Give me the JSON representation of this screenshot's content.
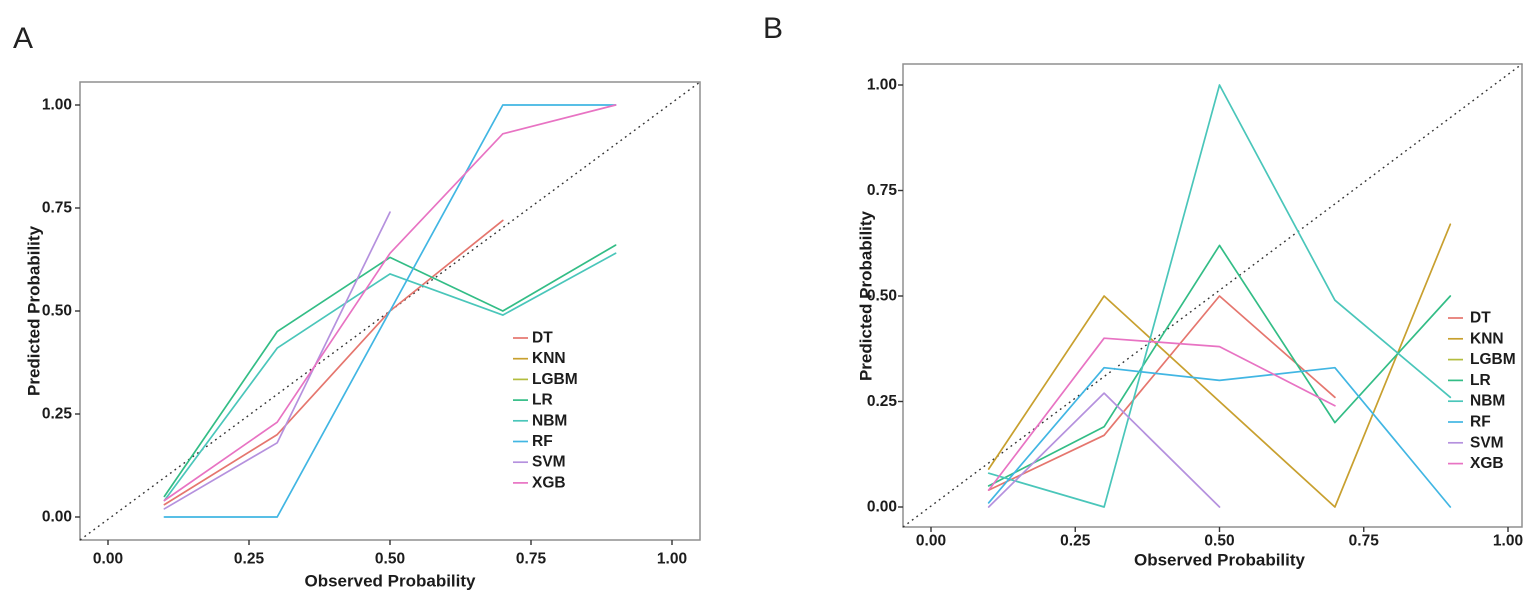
{
  "figure": {
    "background": "#ffffff",
    "panel_border_color": "#8f8f8f",
    "reference_line_color": "#333333",
    "tick_color": "#333333",
    "text_color": "#1c1c1c"
  },
  "series_colors": {
    "DT": "#E5766E",
    "KNN": "#C8A02F",
    "LGBM": "#B3BD3E",
    "LR": "#33BD86",
    "NBM": "#4AC6BA",
    "RF": "#41B6E3",
    "SVM": "#B591DE",
    "XGB": "#E873C3"
  },
  "chart_data": [
    {
      "panel_label": "A",
      "type": "line",
      "title": "",
      "xlabel": "Observed Probability",
      "ylabel": "Predicted Probability",
      "x_ticks": [
        "0.00",
        "0.25",
        "0.50",
        "0.75",
        "1.00"
      ],
      "y_ticks": [
        "0.00",
        "0.25",
        "0.50",
        "0.75",
        "1.00"
      ],
      "xlim": [
        -0.05,
        1.05
      ],
      "ylim": [
        -0.05,
        1.05
      ],
      "grid": "off",
      "reference_line": "y = x (black dotted diagonal)",
      "legend_position": "inside-right-center",
      "legend_entries": [
        "DT",
        "KNN",
        "LGBM",
        "LR",
        "NBM",
        "RF",
        "SVM",
        "XGB"
      ],
      "series": [
        {
          "name": "DT",
          "points": [
            [
              0.1,
              0.03
            ],
            [
              0.3,
              0.2
            ],
            [
              0.5,
              0.5
            ],
            [
              0.7,
              0.72
            ]
          ]
        },
        {
          "name": "KNN",
          "points": []
        },
        {
          "name": "LGBM",
          "points": []
        },
        {
          "name": "LR",
          "points": [
            [
              0.1,
              0.05
            ],
            [
              0.3,
              0.45
            ],
            [
              0.5,
              0.63
            ],
            [
              0.7,
              0.5
            ],
            [
              0.9,
              0.66
            ]
          ]
        },
        {
          "name": "NBM",
          "points": [
            [
              0.1,
              0.04
            ],
            [
              0.3,
              0.41
            ],
            [
              0.5,
              0.59
            ],
            [
              0.7,
              0.49
            ],
            [
              0.9,
              0.64
            ]
          ]
        },
        {
          "name": "RF",
          "points": [
            [
              0.1,
              0.0
            ],
            [
              0.3,
              0.0
            ],
            [
              0.5,
              0.5
            ],
            [
              0.7,
              1.0
            ],
            [
              0.9,
              1.0
            ]
          ]
        },
        {
          "name": "SVM",
          "points": [
            [
              0.1,
              0.02
            ],
            [
              0.3,
              0.18
            ],
            [
              0.5,
              0.74
            ]
          ]
        },
        {
          "name": "XGB",
          "points": [
            [
              0.1,
              0.04
            ],
            [
              0.3,
              0.23
            ],
            [
              0.5,
              0.64
            ],
            [
              0.7,
              0.93
            ],
            [
              0.9,
              1.0
            ]
          ]
        }
      ]
    },
    {
      "panel_label": "B",
      "type": "line",
      "title": "",
      "xlabel": "Observed Probability",
      "ylabel": "Predicted Probability",
      "x_ticks": [
        "0.00",
        "0.25",
        "0.50",
        "0.75",
        "1.00"
      ],
      "y_ticks": [
        "0.00",
        "0.25",
        "0.50",
        "0.75",
        "1.00"
      ],
      "xlim": [
        -0.05,
        1.05
      ],
      "ylim": [
        -0.05,
        1.05
      ],
      "grid": "off",
      "reference_line": "y = x (black dotted diagonal)",
      "legend_position": "inside-right-center",
      "legend_entries": [
        "DT",
        "KNN",
        "LGBM",
        "LR",
        "NBM",
        "RF",
        "SVM",
        "XGB"
      ],
      "series": [
        {
          "name": "DT",
          "points": [
            [
              0.1,
              0.04
            ],
            [
              0.3,
              0.17
            ],
            [
              0.5,
              0.5
            ],
            [
              0.7,
              0.26
            ]
          ]
        },
        {
          "name": "KNN",
          "points": [
            [
              0.1,
              0.09
            ],
            [
              0.3,
              0.5
            ],
            [
              0.7,
              0.0
            ],
            [
              0.9,
              0.67
            ]
          ]
        },
        {
          "name": "LGBM",
          "points": []
        },
        {
          "name": "LR",
          "points": [
            [
              0.1,
              0.05
            ],
            [
              0.3,
              0.19
            ],
            [
              0.5,
              0.62
            ],
            [
              0.7,
              0.2
            ],
            [
              0.9,
              0.5
            ]
          ]
        },
        {
          "name": "NBM",
          "points": [
            [
              0.1,
              0.08
            ],
            [
              0.3,
              0.0
            ],
            [
              0.5,
              1.0
            ],
            [
              0.7,
              0.49
            ],
            [
              0.9,
              0.26
            ]
          ]
        },
        {
          "name": "RF",
          "points": [
            [
              0.1,
              0.01
            ],
            [
              0.3,
              0.33
            ],
            [
              0.5,
              0.3
            ],
            [
              0.7,
              0.33
            ],
            [
              0.9,
              0.0
            ]
          ]
        },
        {
          "name": "SVM",
          "points": [
            [
              0.1,
              0.0
            ],
            [
              0.3,
              0.27
            ],
            [
              0.5,
              0.0
            ]
          ]
        },
        {
          "name": "XGB",
          "points": [
            [
              0.1,
              0.04
            ],
            [
              0.3,
              0.4
            ],
            [
              0.5,
              0.38
            ],
            [
              0.7,
              0.24
            ]
          ]
        }
      ]
    }
  ]
}
